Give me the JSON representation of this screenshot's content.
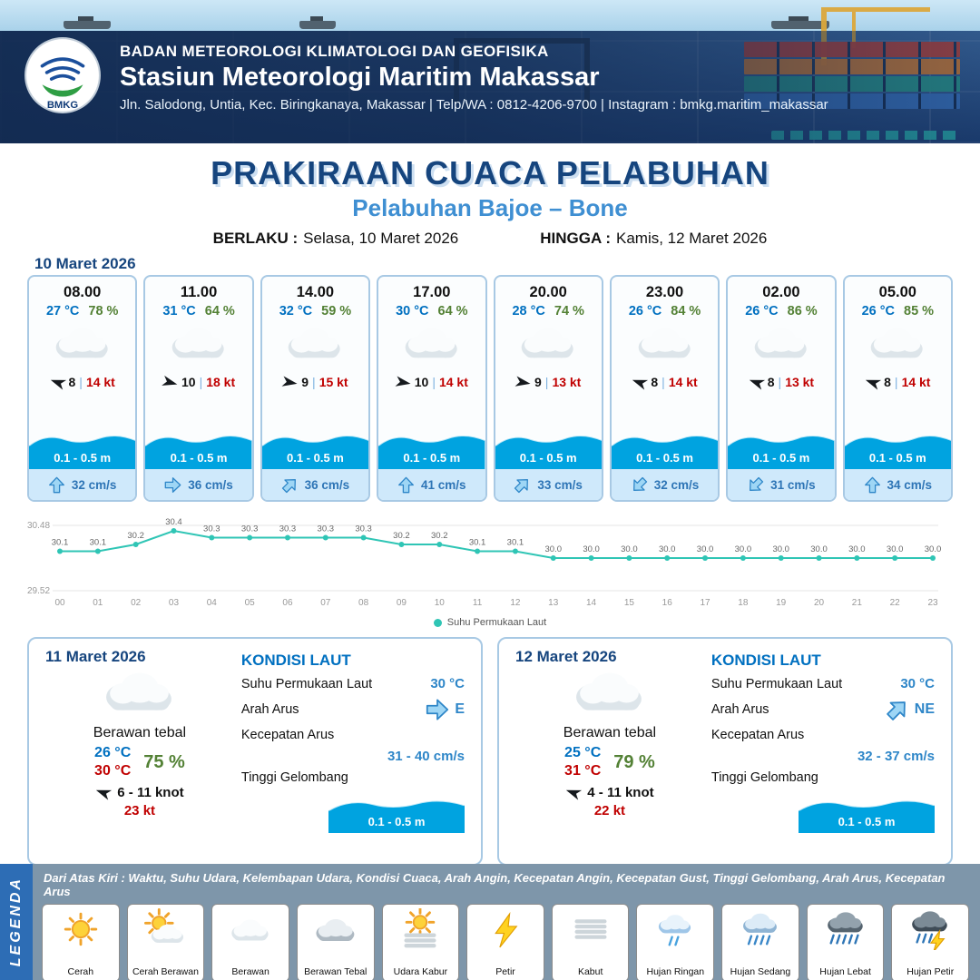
{
  "colors": {
    "title": "#16457e",
    "subtitle": "#3f8fd2",
    "temp_blue": "#0070c0",
    "humidity_green": "#538135",
    "gust_red": "#c00000",
    "wave_blue": "#00a3e0",
    "current_blue": "#2e75b6",
    "chart_line": "#2fc5b5",
    "legend_bg": "#7e96aa",
    "ribbon_blue": "#2d6db5"
  },
  "header": {
    "logo_text": "BMKG",
    "org": "BADAN METEOROLOGI KLIMATOLOGI DAN GEOFISIKA",
    "station": "Stasiun Meteorologi Maritim Makassar",
    "contact": "Jln. Salodong, Untia, Kec. Biringkanaya, Makassar | Telp/WA : 0812-4206-9700 | Instagram : bmkg.maritim_makassar"
  },
  "title": {
    "main": "PRAKIRAAN CUACA PELABUHAN",
    "sub": "Pelabuhan Bajoe – Bone",
    "berlaku_label": "BERLAKU :",
    "berlaku_value": "Selasa, 10 Maret 2026",
    "hingga_label": "HINGGA :",
    "hingga_value": "Kamis, 12 Maret 2026"
  },
  "forecast_date": "10 Maret 2026",
  "forecast_cards": [
    {
      "time": "08.00",
      "temp": "27 °C",
      "rh": "78 %",
      "wind": "8",
      "gust": "14 kt",
      "wave": "0.1 - 0.5 m",
      "current": "32 cm/s",
      "wind_deg": 200,
      "current_deg": 0
    },
    {
      "time": "11.00",
      "temp": "31 °C",
      "rh": "64 %",
      "wind": "10",
      "gust": "18 kt",
      "wave": "0.1 - 0.5 m",
      "current": "36 cm/s",
      "wind_deg": 15,
      "current_deg": 90
    },
    {
      "time": "14.00",
      "temp": "32 °C",
      "rh": "59 %",
      "wind": "9",
      "gust": "15 kt",
      "wave": "0.1 - 0.5 m",
      "current": "36 cm/s",
      "wind_deg": 10,
      "current_deg": 45
    },
    {
      "time": "17.00",
      "temp": "30 °C",
      "rh": "64 %",
      "wind": "10",
      "gust": "14 kt",
      "wave": "0.1 - 0.5 m",
      "current": "41 cm/s",
      "wind_deg": 10,
      "current_deg": 0
    },
    {
      "time": "20.00",
      "temp": "28 °C",
      "rh": "74 %",
      "wind": "9",
      "gust": "13 kt",
      "wave": "0.1 - 0.5 m",
      "current": "33 cm/s",
      "wind_deg": 10,
      "current_deg": 45
    },
    {
      "time": "23.00",
      "temp": "26 °C",
      "rh": "84 %",
      "wind": "8",
      "gust": "14 kt",
      "wave": "0.1 - 0.5 m",
      "current": "32 cm/s",
      "wind_deg": 200,
      "current_deg": 225
    },
    {
      "time": "02.00",
      "temp": "26 °C",
      "rh": "86 %",
      "wind": "8",
      "gust": "13 kt",
      "wave": "0.1 - 0.5 m",
      "current": "31 cm/s",
      "wind_deg": 200,
      "current_deg": 225
    },
    {
      "time": "05.00",
      "temp": "26 °C",
      "rh": "85 %",
      "wind": "8",
      "gust": "14 kt",
      "wave": "0.1 - 0.5 m",
      "current": "34 cm/s",
      "wind_deg": 200,
      "current_deg": 0
    }
  ],
  "chart_data": {
    "type": "line",
    "legend": "Suhu Permukaan Laut",
    "x": [
      "00",
      "01",
      "02",
      "03",
      "04",
      "05",
      "06",
      "07",
      "08",
      "09",
      "10",
      "11",
      "12",
      "13",
      "14",
      "15",
      "16",
      "17",
      "18",
      "19",
      "20",
      "21",
      "22",
      "23"
    ],
    "values": [
      30.1,
      30.1,
      30.2,
      30.4,
      30.3,
      30.3,
      30.3,
      30.3,
      30.3,
      30.2,
      30.2,
      30.1,
      30.1,
      30.0,
      30.0,
      30.0,
      30.0,
      30.0,
      30.0,
      30.0,
      30.0,
      30.0,
      30.0,
      30.0
    ],
    "ylim": [
      29.52,
      30.48
    ],
    "line_color": "#2fc5b5",
    "grid": true,
    "legend_position": "bottom"
  },
  "day_cards": [
    {
      "date": "11 Maret 2026",
      "condition": "Berawan tebal",
      "temp_min": "26 °C",
      "temp_max": "30 °C",
      "humidity": "75 %",
      "wind_range": "6 - 11 knot",
      "gust": "23 kt",
      "wind_deg": 200,
      "sea": {
        "title": "KONDISI LAUT",
        "sst_label": "Suhu Permukaan Laut",
        "sst_value": "30 °C",
        "current_dir_label": "Arah Arus",
        "current_dir": "E",
        "current_deg": 90,
        "current_speed_label": "Kecepatan Arus",
        "current_speed": "31 - 40 cm/s",
        "wave_label": "Tinggi Gelombang",
        "wave_value": "0.1 - 0.5 m"
      }
    },
    {
      "date": "12 Maret 2026",
      "condition": "Berawan tebal",
      "temp_min": "25 °C",
      "temp_max": "31 °C",
      "humidity": "79 %",
      "wind_range": "4 - 11 knot",
      "gust": "22 kt",
      "wind_deg": 200,
      "sea": {
        "title": "KONDISI LAUT",
        "sst_label": "Suhu Permukaan Laut",
        "sst_value": "30 °C",
        "current_dir_label": "Arah Arus",
        "current_dir": "NE",
        "current_deg": 45,
        "current_speed_label": "Kecepatan Arus",
        "current_speed": "32 - 37 cm/s",
        "wave_label": "Tinggi Gelombang",
        "wave_value": "0.1 - 0.5 m"
      }
    }
  ],
  "legend": {
    "ribbon": "LEGENDA",
    "description": "Dari Atas Kiri : Waktu, Suhu Udara, Kelembapan Udara, Kondisi Cuaca, Arah Angin, Kecepatan Angin, Kecepatan Gust, Tinggi Gelombang, Arah Arus, Kecepatan Arus",
    "items": [
      {
        "label": "Cerah",
        "icon": "cerah"
      },
      {
        "label": "Cerah Berawan",
        "icon": "cerah-berawan"
      },
      {
        "label": "Berawan",
        "icon": "berawan"
      },
      {
        "label": "Berawan Tebal",
        "icon": "berawan-tebal"
      },
      {
        "label": "Udara Kabur",
        "icon": "udara-kabur"
      },
      {
        "label": "Petir",
        "icon": "petir"
      },
      {
        "label": "Kabut",
        "icon": "kabut"
      },
      {
        "label": "Hujan Ringan",
        "icon": "hujan-ringan"
      },
      {
        "label": "Hujan Sedang",
        "icon": "hujan-sedang"
      },
      {
        "label": "Hujan Lebat",
        "icon": "hujan-lebat"
      },
      {
        "label": "Hujan Petir",
        "icon": "hujan-petir"
      }
    ]
  }
}
